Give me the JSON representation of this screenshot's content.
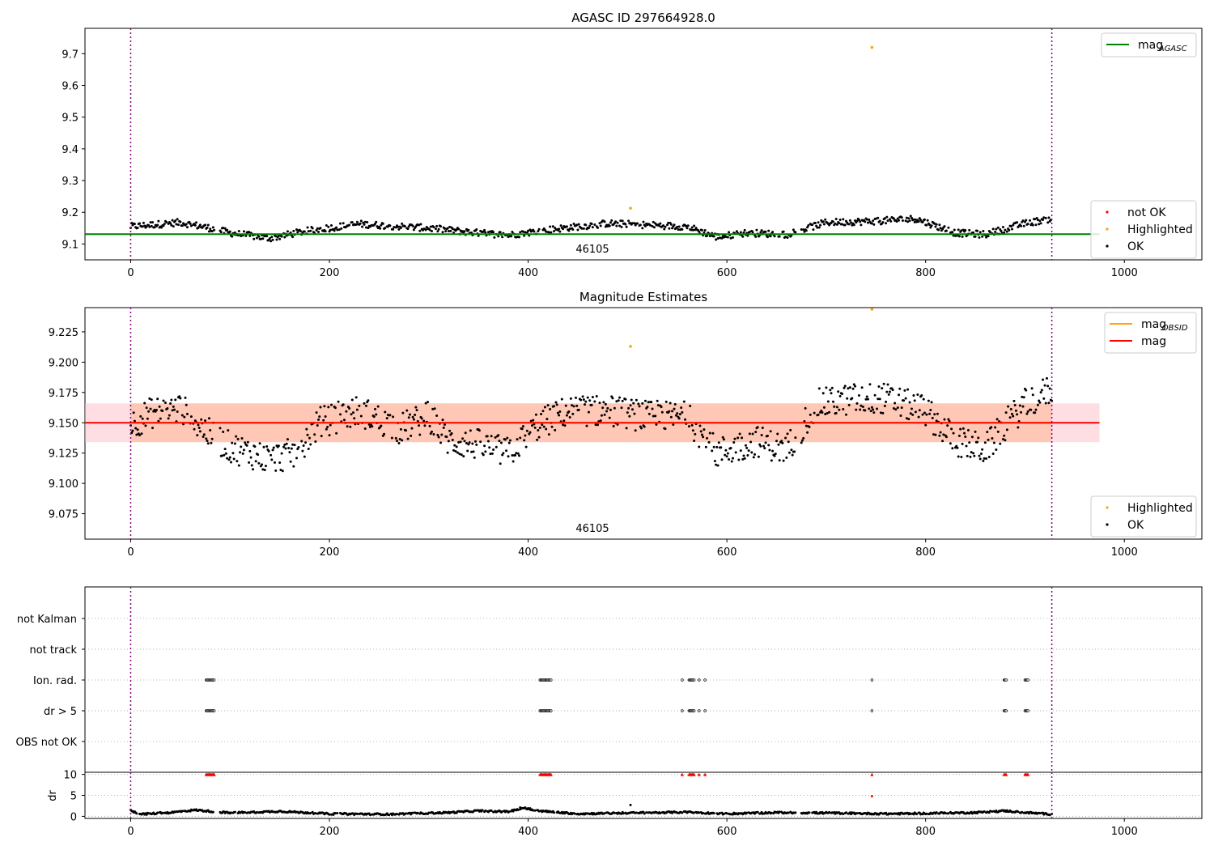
{
  "chart_data": [
    {
      "type": "scatter",
      "title": "AGASC ID 297664928.0",
      "xlim": [
        -46,
        1078
      ],
      "ylim": [
        9.05,
        9.78
      ],
      "xticks": [
        "0",
        "200",
        "400",
        "600",
        "800",
        "1000"
      ],
      "yticks": [
        "9.1",
        "9.2",
        "9.3",
        "9.4",
        "9.5",
        "9.6",
        "9.7"
      ],
      "annotation": "46105",
      "vlines_x": [
        0,
        927
      ],
      "hline": {
        "name": "mag",
        "name_sub": "AGASC",
        "y": 9.131,
        "color": "#008000"
      },
      "legend_upper": [
        {
          "label": "mag",
          "sub": "AGASC",
          "color": "#008000",
          "marker": "line"
        }
      ],
      "legend_lower": [
        {
          "label": "not OK",
          "color": "#ff0000",
          "marker": "dot"
        },
        {
          "label": "Highlighted",
          "color": "#ffa500",
          "marker": "dot"
        },
        {
          "label": "OK",
          "color": "#000000",
          "marker": "dot"
        }
      ],
      "highlighted_points": [
        {
          "x": 503,
          "y": 9.213
        },
        {
          "x": 746,
          "y": 9.72
        }
      ],
      "ok_trend": [
        [
          0,
          9.155
        ],
        [
          50,
          9.168
        ],
        [
          80,
          9.15
        ],
        [
          100,
          9.135
        ],
        [
          140,
          9.118
        ],
        [
          175,
          9.14
        ],
        [
          230,
          9.163
        ],
        [
          300,
          9.15
        ],
        [
          350,
          9.135
        ],
        [
          380,
          9.128
        ],
        [
          420,
          9.145
        ],
        [
          480,
          9.165
        ],
        [
          560,
          9.155
        ],
        [
          590,
          9.122
        ],
        [
          620,
          9.135
        ],
        [
          660,
          9.13
        ],
        [
          700,
          9.168
        ],
        [
          750,
          9.172
        ],
        [
          790,
          9.18
        ],
        [
          830,
          9.135
        ],
        [
          860,
          9.13
        ],
        [
          900,
          9.165
        ],
        [
          927,
          9.18
        ]
      ]
    },
    {
      "type": "scatter",
      "title": "Magnitude Estimates",
      "xlim": [
        -46,
        1078
      ],
      "ylim": [
        9.054,
        9.245
      ],
      "xticks": [
        "0",
        "200",
        "400",
        "600",
        "800",
        "1000"
      ],
      "yticks": [
        "9.075",
        "9.100",
        "9.125",
        "9.150",
        "9.175",
        "9.200",
        "9.225"
      ],
      "annotation": "46105",
      "vlines_x": [
        0,
        927
      ],
      "mag_line": {
        "name": "mag",
        "y": 9.15,
        "color": "#ff0000"
      },
      "mag_obsid_line": {
        "name": "mag",
        "sub": "OBSID",
        "y": 9.15,
        "color": "#ffa500"
      },
      "band": {
        "y0": 9.134,
        "y1": 9.166,
        "x0": -46,
        "x1": 975
      },
      "legend_upper": [
        {
          "label": "mag",
          "sub": "OBSID",
          "color": "#ffa500",
          "marker": "line"
        },
        {
          "label": "mag",
          "sub": "",
          "color": "#ff0000",
          "marker": "line"
        }
      ],
      "legend_lower": [
        {
          "label": "Highlighted",
          "color": "#ffa500",
          "marker": "dot"
        },
        {
          "label": "OK",
          "color": "#000000",
          "marker": "dot"
        }
      ],
      "highlighted_points": [
        {
          "x": 503,
          "y": 9.213
        },
        {
          "x": 746,
          "y": 9.245
        }
      ],
      "ok_trend": [
        [
          0,
          9.148
        ],
        [
          20,
          9.158
        ],
        [
          50,
          9.162
        ],
        [
          80,
          9.14
        ],
        [
          100,
          9.13
        ],
        [
          140,
          9.12
        ],
        [
          165,
          9.125
        ],
        [
          190,
          9.15
        ],
        [
          230,
          9.16
        ],
        [
          270,
          9.145
        ],
        [
          300,
          9.155
        ],
        [
          320,
          9.135
        ],
        [
          350,
          9.132
        ],
        [
          380,
          9.125
        ],
        [
          410,
          9.148
        ],
        [
          440,
          9.16
        ],
        [
          480,
          9.16
        ],
        [
          520,
          9.155
        ],
        [
          560,
          9.155
        ],
        [
          590,
          9.125
        ],
        [
          630,
          9.135
        ],
        [
          660,
          9.128
        ],
        [
          690,
          9.165
        ],
        [
          730,
          9.17
        ],
        [
          760,
          9.17
        ],
        [
          800,
          9.16
        ],
        [
          830,
          9.135
        ],
        [
          860,
          9.128
        ],
        [
          880,
          9.148
        ],
        [
          900,
          9.165
        ],
        [
          927,
          9.178
        ]
      ]
    },
    {
      "type": "scatter",
      "title": "",
      "xlim": [
        -46,
        1078
      ],
      "categories": [
        "not Kalman",
        "not track",
        "Ion. rad.",
        "dr > 5",
        "OBS not OK"
      ],
      "vlines_x": [
        0,
        927
      ],
      "flag_points": {
        "Ion. rad.": [
          76,
          77,
          78,
          79,
          80,
          81,
          82,
          83,
          84,
          412,
          413,
          414,
          415,
          416,
          417,
          418,
          419,
          420,
          421,
          422,
          423,
          555,
          562,
          563,
          564,
          565,
          566,
          567,
          572,
          578,
          746,
          879,
          880,
          881,
          900,
          901,
          902,
          903
        ],
        "dr > 5": [
          76,
          77,
          78,
          79,
          80,
          81,
          82,
          83,
          84,
          412,
          413,
          414,
          415,
          416,
          417,
          418,
          419,
          420,
          421,
          422,
          423,
          555,
          562,
          563,
          564,
          565,
          566,
          567,
          572,
          578,
          746,
          879,
          880,
          881,
          900,
          901,
          902,
          903
        ]
      }
    },
    {
      "type": "scatter",
      "ylabel": "dr",
      "xlim": [
        -46,
        1078
      ],
      "ylim": [
        -0.5,
        10.5
      ],
      "xticks": [
        "0",
        "200",
        "400",
        "600",
        "800",
        "1000"
      ],
      "yticks": [
        "0",
        "5",
        "10"
      ],
      "vlines_x": [
        0,
        927
      ],
      "clipped_points_x": [
        76,
        77,
        78,
        79,
        80,
        81,
        82,
        83,
        84,
        412,
        413,
        414,
        415,
        416,
        417,
        418,
        419,
        420,
        421,
        422,
        423,
        555,
        562,
        563,
        564,
        565,
        566,
        567,
        572,
        578,
        746,
        879,
        880,
        881,
        900,
        901,
        902,
        903
      ],
      "extra_points": [
        {
          "x": 746,
          "y": 4.8
        },
        {
          "x": 503,
          "y": 2.7
        },
        {
          "x": 392,
          "y": 2.1
        },
        {
          "x": 402,
          "y": 1.9
        }
      ],
      "ok_trend": [
        [
          0,
          1.4
        ],
        [
          10,
          0.5
        ],
        [
          40,
          0.9
        ],
        [
          65,
          1.5
        ],
        [
          80,
          1.2
        ],
        [
          100,
          0.8
        ],
        [
          150,
          1.2
        ],
        [
          200,
          0.6
        ],
        [
          260,
          0.5
        ],
        [
          320,
          0.9
        ],
        [
          350,
          1.3
        ],
        [
          380,
          1.1
        ],
        [
          395,
          2.0
        ],
        [
          410,
          1.3
        ],
        [
          450,
          0.6
        ],
        [
          500,
          0.8
        ],
        [
          560,
          1.0
        ],
        [
          600,
          0.6
        ],
        [
          650,
          0.9
        ],
        [
          700,
          0.8
        ],
        [
          760,
          0.6
        ],
        [
          800,
          0.7
        ],
        [
          850,
          0.9
        ],
        [
          880,
          1.3
        ],
        [
          900,
          0.9
        ],
        [
          927,
          0.5
        ]
      ]
    }
  ]
}
